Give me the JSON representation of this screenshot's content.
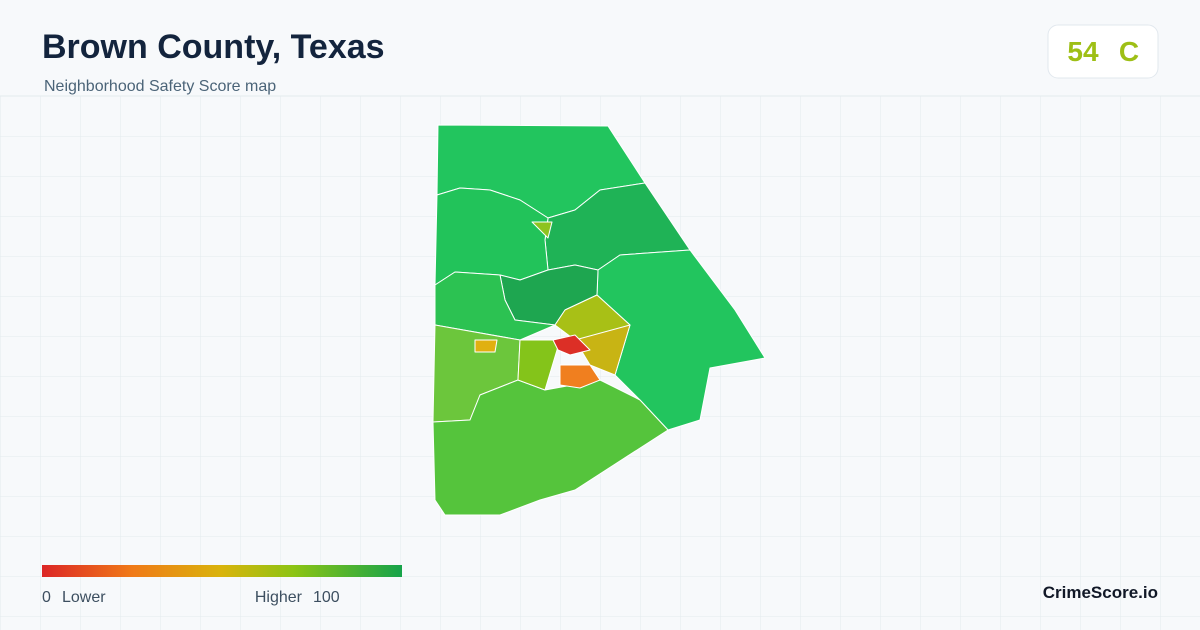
{
  "header": {
    "title": "Brown County, Texas",
    "subtitle": "Neighborhood Safety Score map"
  },
  "score": {
    "value": "54",
    "grade": "C"
  },
  "legend": {
    "min": "0",
    "low_label": "Lower",
    "high_label": "Higher",
    "max": "100"
  },
  "brand": "CrimeScore.io"
}
